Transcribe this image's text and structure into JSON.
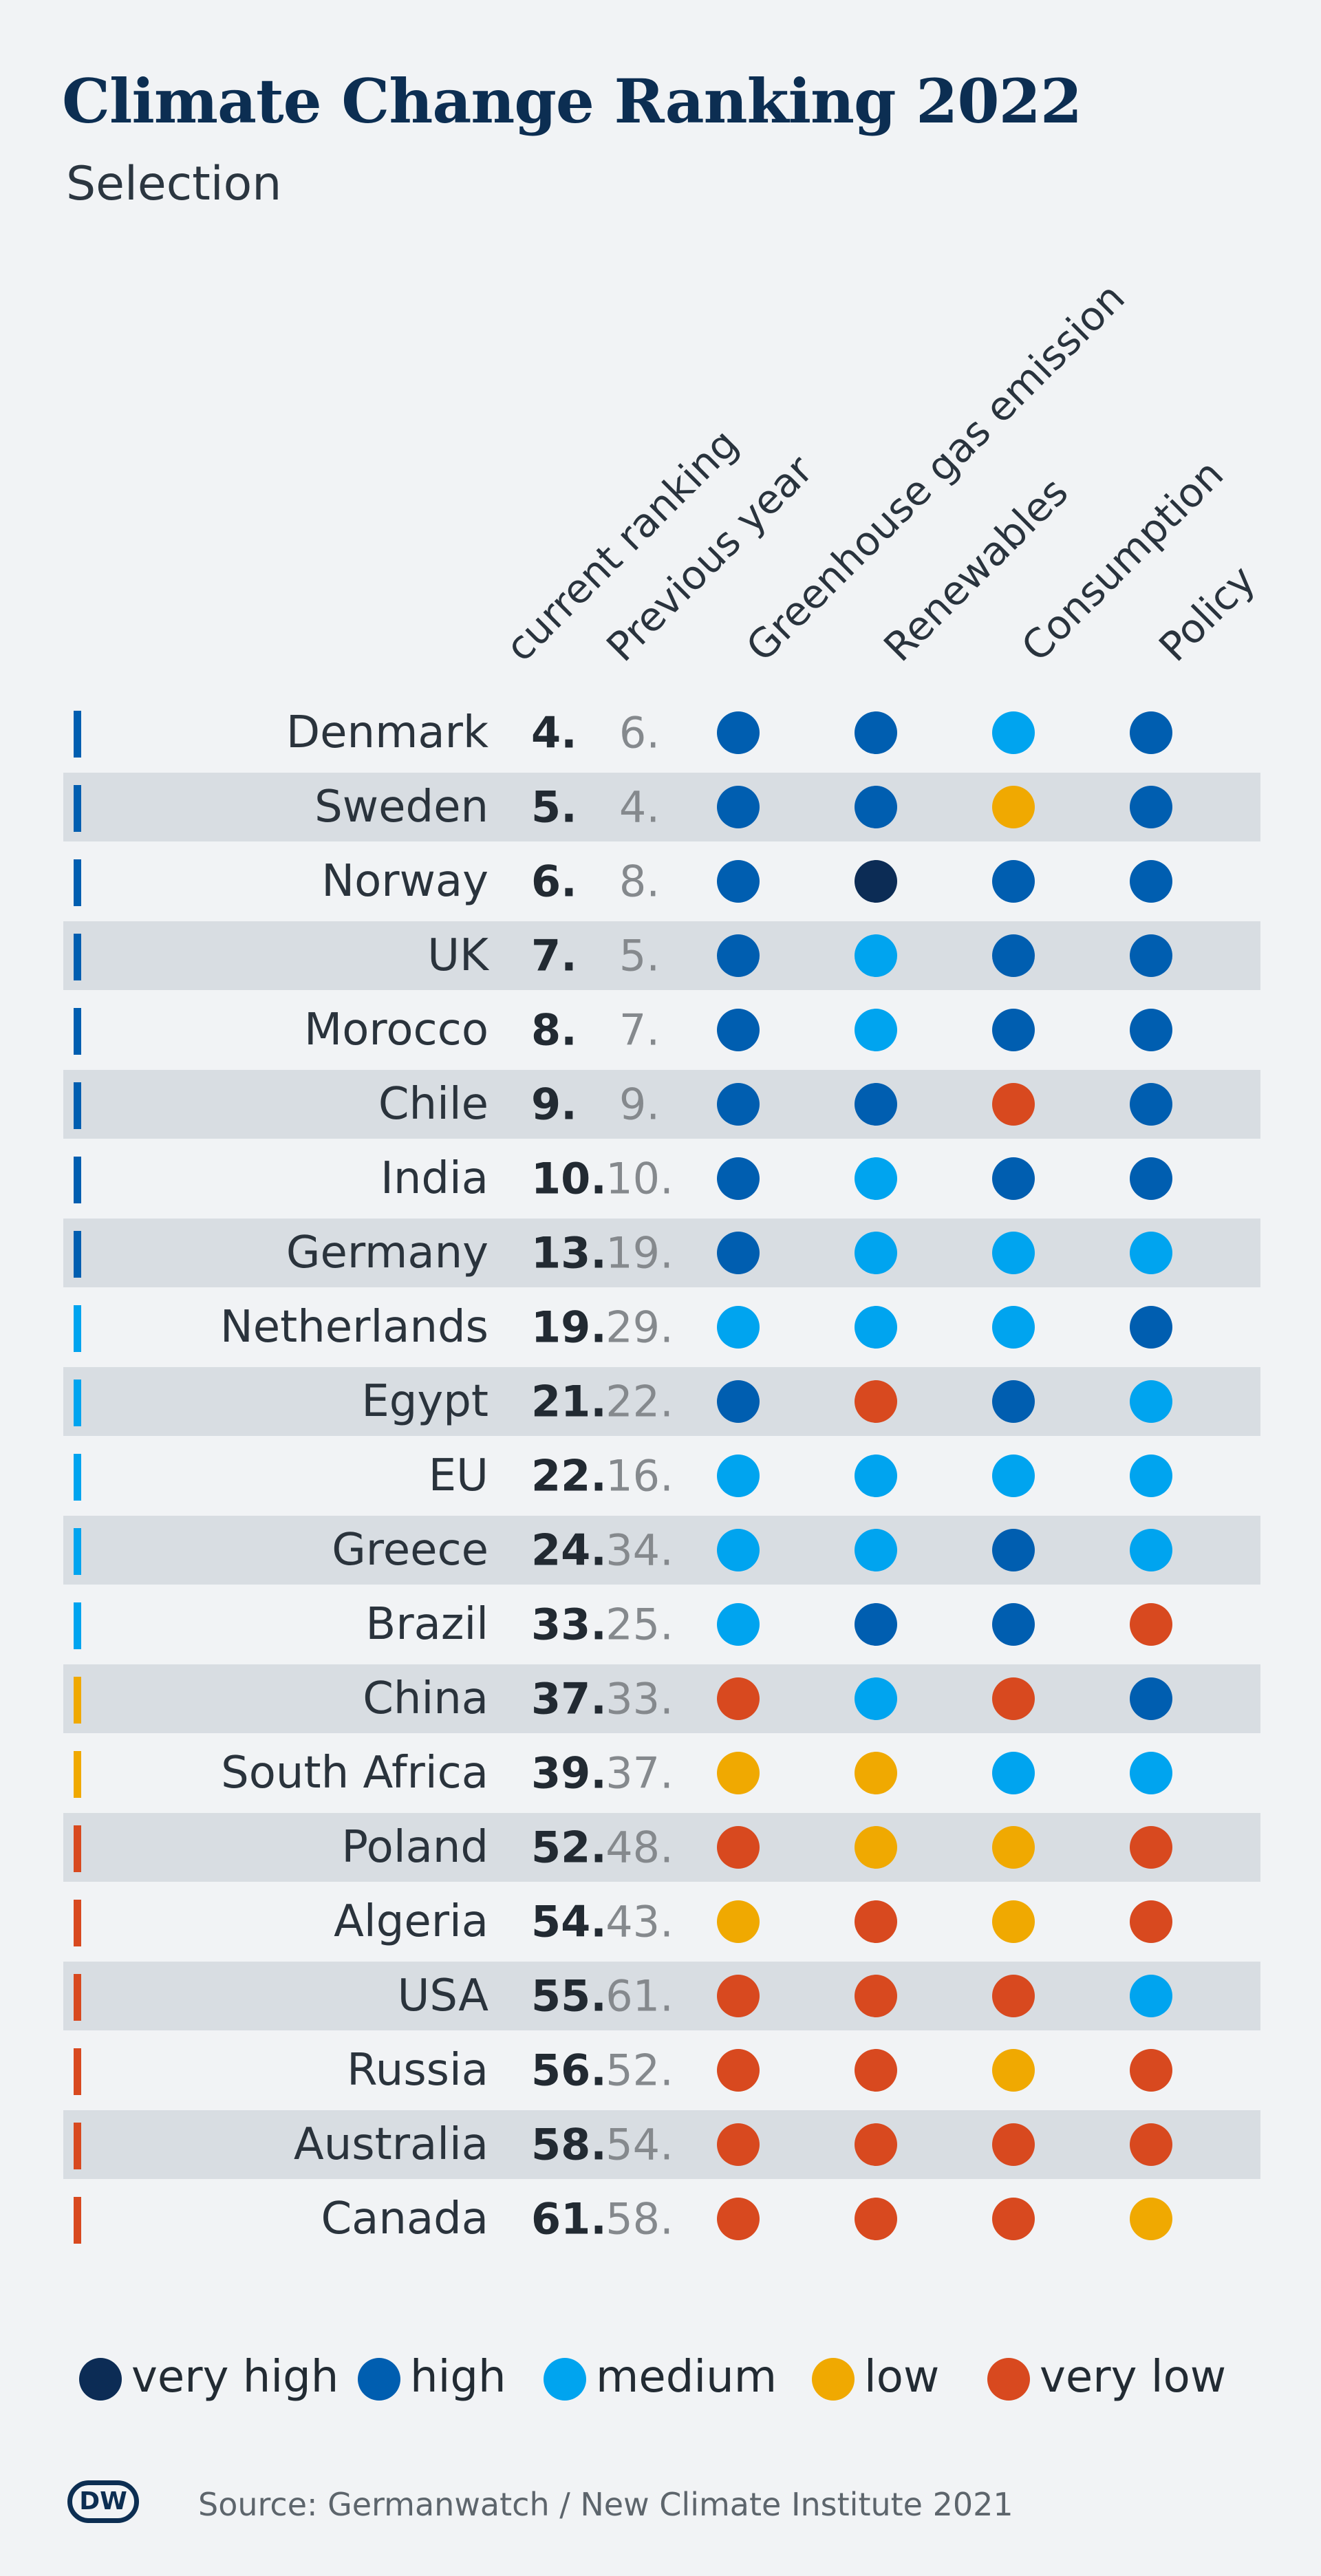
{
  "title": "Climate Change Ranking 2022",
  "subtitle": "Selection",
  "columns": {
    "current": "current ranking",
    "previous": "Previous year",
    "ghg": "Greenhouse gas emission",
    "renewables": "Renewables",
    "consumption": "Consumption",
    "policy": "Policy"
  },
  "colors": {
    "very high": "#0c2c55",
    "high": "#005eb0",
    "medium": "#00a4ef",
    "low": "#f0a901",
    "very low": "#d8491f"
  },
  "legend": [
    {
      "key": "very high",
      "label": "very high"
    },
    {
      "key": "high",
      "label": "high"
    },
    {
      "key": "medium",
      "label": "medium"
    },
    {
      "key": "low",
      "label": "low"
    },
    {
      "key": "very low",
      "label": "very low"
    }
  ],
  "chart_data": {
    "type": "table",
    "title": "Climate Change Ranking 2022",
    "subtitle": "Selection",
    "columns": [
      "current ranking",
      "Previous year",
      "Greenhouse gas emission",
      "Renewables",
      "Consumption",
      "Policy"
    ],
    "rows": [
      {
        "country": "Denmark",
        "current": "4.",
        "previous": "6.",
        "bar": "high",
        "ratings": [
          "high",
          "high",
          "medium",
          "high"
        ]
      },
      {
        "country": "Sweden",
        "current": "5.",
        "previous": "4.",
        "bar": "high",
        "ratings": [
          "high",
          "high",
          "low",
          "high"
        ]
      },
      {
        "country": "Norway",
        "current": "6.",
        "previous": "8.",
        "bar": "high",
        "ratings": [
          "high",
          "very high",
          "high",
          "high"
        ]
      },
      {
        "country": "UK",
        "current": "7.",
        "previous": "5.",
        "bar": "high",
        "ratings": [
          "high",
          "medium",
          "high",
          "high"
        ]
      },
      {
        "country": "Morocco",
        "current": "8.",
        "previous": "7.",
        "bar": "high",
        "ratings": [
          "high",
          "medium",
          "high",
          "high"
        ]
      },
      {
        "country": "Chile",
        "current": "9.",
        "previous": "9.",
        "bar": "high",
        "ratings": [
          "high",
          "high",
          "very low",
          "high"
        ]
      },
      {
        "country": "India",
        "current": "10.",
        "previous": "10.",
        "bar": "high",
        "ratings": [
          "high",
          "medium",
          "high",
          "high"
        ]
      },
      {
        "country": "Germany",
        "current": "13.",
        "previous": "19.",
        "bar": "high",
        "ratings": [
          "high",
          "medium",
          "medium",
          "medium"
        ]
      },
      {
        "country": "Netherlands",
        "current": "19.",
        "previous": "29.",
        "bar": "medium",
        "ratings": [
          "medium",
          "medium",
          "medium",
          "high"
        ]
      },
      {
        "country": "Egypt",
        "current": "21.",
        "previous": "22.",
        "bar": "medium",
        "ratings": [
          "high",
          "very low",
          "high",
          "medium"
        ]
      },
      {
        "country": "EU",
        "current": "22.",
        "previous": "16.",
        "bar": "medium",
        "ratings": [
          "medium",
          "medium",
          "medium",
          "medium"
        ]
      },
      {
        "country": "Greece",
        "current": "24.",
        "previous": "34.",
        "bar": "medium",
        "ratings": [
          "medium",
          "medium",
          "high",
          "medium"
        ]
      },
      {
        "country": "Brazil",
        "current": "33.",
        "previous": "25.",
        "bar": "medium",
        "ratings": [
          "medium",
          "high",
          "high",
          "very low"
        ]
      },
      {
        "country": "China",
        "current": "37.",
        "previous": "33.",
        "bar": "low",
        "ratings": [
          "very low",
          "medium",
          "very low",
          "high"
        ]
      },
      {
        "country": "South Africa",
        "current": "39.",
        "previous": "37.",
        "bar": "low",
        "ratings": [
          "low",
          "low",
          "medium",
          "medium"
        ]
      },
      {
        "country": "Poland",
        "current": "52.",
        "previous": "48.",
        "bar": "very low",
        "ratings": [
          "very low",
          "low",
          "low",
          "very low"
        ]
      },
      {
        "country": "Algeria",
        "current": "54.",
        "previous": "43.",
        "bar": "very low",
        "ratings": [
          "low",
          "very low",
          "low",
          "very low"
        ]
      },
      {
        "country": "USA",
        "current": "55.",
        "previous": "61.",
        "bar": "very low",
        "ratings": [
          "very low",
          "very low",
          "very low",
          "medium"
        ]
      },
      {
        "country": "Russia",
        "current": "56.",
        "previous": "52.",
        "bar": "very low",
        "ratings": [
          "very low",
          "very low",
          "low",
          "very low"
        ]
      },
      {
        "country": "Australia",
        "current": "58.",
        "previous": "54.",
        "bar": "very low",
        "ratings": [
          "very low",
          "very low",
          "very low",
          "very low"
        ]
      },
      {
        "country": "Canada",
        "current": "61.",
        "previous": "58.",
        "bar": "very low",
        "ratings": [
          "very low",
          "very low",
          "very low",
          "low"
        ]
      }
    ]
  },
  "footer": {
    "logo": "DW",
    "source": "Source: Germanwatch / New Climate Institute 2021"
  }
}
